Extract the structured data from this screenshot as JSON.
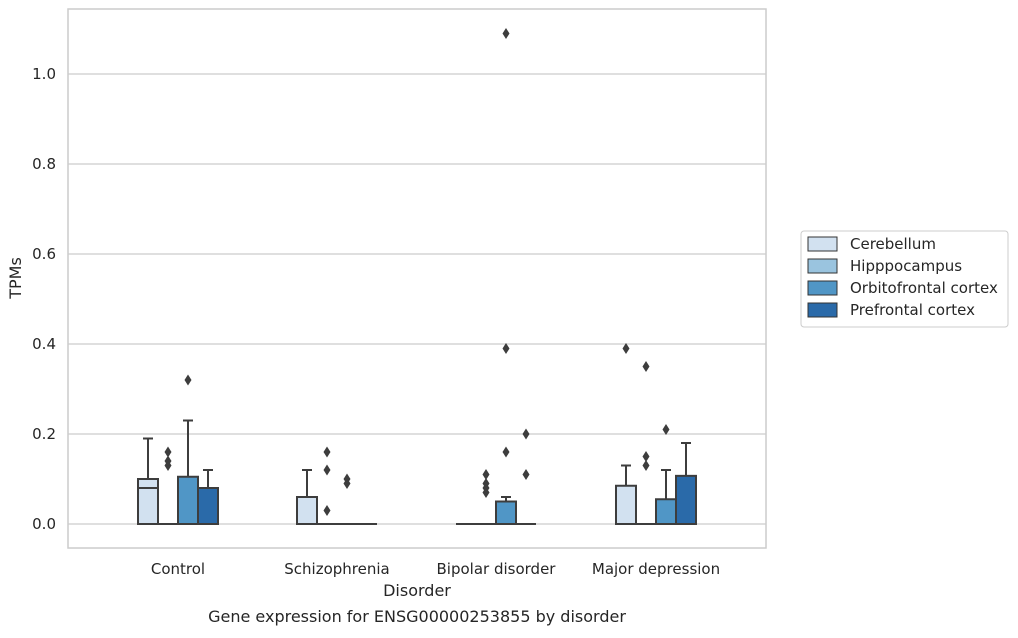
{
  "chart_data": {
    "type": "box",
    "title": "Gene expression for ENSG00000253855 by disorder",
    "xlabel": "Disorder",
    "ylabel": "TPMs",
    "categories": [
      "Control",
      "Schizophrenia",
      "Bipolar disorder",
      "Major depression"
    ],
    "ylim": [
      -0.05,
      1.15
    ],
    "yticks": [
      0.0,
      0.2,
      0.4,
      0.6,
      0.8,
      1.0
    ],
    "ytick_labels": [
      "0.0",
      "0.2",
      "0.4",
      "0.6",
      "0.8",
      "1.0"
    ],
    "grid": true,
    "legend_position": "right",
    "series": [
      {
        "name": "Cerebellum",
        "color": "#d2e1f0",
        "boxes": [
          {
            "q1": 0.0,
            "median": 0.08,
            "q3": 0.1,
            "whisker_low": 0.0,
            "whisker_high": 0.19,
            "outliers": []
          },
          {
            "q1": 0.0,
            "median": 0.0,
            "q3": 0.06,
            "whisker_low": 0.0,
            "whisker_high": 0.12,
            "outliers": []
          },
          {
            "q1": 0.0,
            "median": 0.0,
            "q3": 0.0,
            "whisker_low": 0.0,
            "whisker_high": 0.0,
            "outliers": []
          },
          {
            "q1": 0.0,
            "median": 0.0,
            "q3": 0.085,
            "whisker_low": 0.0,
            "whisker_high": 0.13,
            "outliers": [
              0.39
            ]
          }
        ]
      },
      {
        "name": "Hipppocampus",
        "color": "#9ac4df",
        "boxes": [
          {
            "q1": 0.0,
            "median": 0.0,
            "q3": 0.0,
            "whisker_low": 0.0,
            "whisker_high": 0.0,
            "outliers": [
              0.13,
              0.14,
              0.16
            ]
          },
          {
            "q1": 0.0,
            "median": 0.0,
            "q3": 0.0,
            "whisker_low": 0.0,
            "whisker_high": 0.0,
            "outliers": [
              0.03,
              0.12,
              0.16
            ]
          },
          {
            "q1": 0.0,
            "median": 0.0,
            "q3": 0.0,
            "whisker_low": 0.0,
            "whisker_high": 0.0,
            "outliers": [
              0.07,
              0.08,
              0.09,
              0.11
            ]
          },
          {
            "q1": 0.0,
            "median": 0.0,
            "q3": 0.0,
            "whisker_low": 0.0,
            "whisker_high": 0.0,
            "outliers": [
              0.13,
              0.15,
              0.35
            ]
          }
        ]
      },
      {
        "name": "Orbitofrontal cortex",
        "color": "#5096c6",
        "boxes": [
          {
            "q1": 0.0,
            "median": 0.0,
            "q3": 0.105,
            "whisker_low": 0.0,
            "whisker_high": 0.23,
            "outliers": [
              0.32
            ]
          },
          {
            "q1": 0.0,
            "median": 0.0,
            "q3": 0.0,
            "whisker_low": 0.0,
            "whisker_high": 0.0,
            "outliers": [
              0.09,
              0.1
            ]
          },
          {
            "q1": 0.0,
            "median": 0.0,
            "q3": 0.05,
            "whisker_low": 0.0,
            "whisker_high": 0.06,
            "outliers": [
              0.16,
              0.39,
              1.09
            ]
          },
          {
            "q1": 0.0,
            "median": 0.0,
            "q3": 0.055,
            "whisker_low": 0.0,
            "whisker_high": 0.12,
            "outliers": [
              0.21
            ]
          }
        ]
      },
      {
        "name": "Prefrontal cortex",
        "color": "#2a6aa9",
        "boxes": [
          {
            "q1": 0.0,
            "median": 0.0,
            "q3": 0.08,
            "whisker_low": 0.0,
            "whisker_high": 0.12,
            "outliers": []
          },
          {
            "q1": 0.0,
            "median": 0.0,
            "q3": 0.0,
            "whisker_low": 0.0,
            "whisker_high": 0.0,
            "outliers": []
          },
          {
            "q1": 0.0,
            "median": 0.0,
            "q3": 0.0,
            "whisker_low": 0.0,
            "whisker_high": 0.0,
            "outliers": [
              0.11,
              0.2
            ]
          },
          {
            "q1": 0.0,
            "median": 0.0,
            "q3": 0.107,
            "whisker_low": 0.0,
            "whisker_high": 0.18,
            "outliers": []
          }
        ]
      }
    ]
  }
}
